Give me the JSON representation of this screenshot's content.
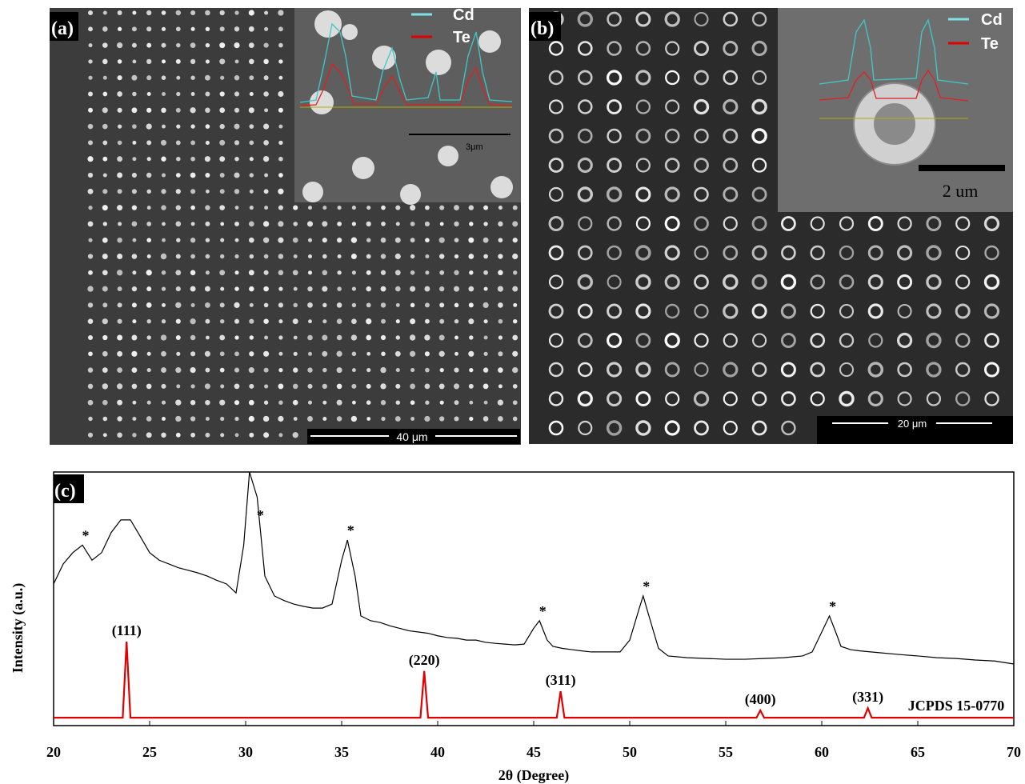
{
  "panels": [
    {
      "label": "(a)",
      "inset_legend": [
        "Cd",
        "Te"
      ],
      "inset_scale": "3μm",
      "scale_bar": "40 μm"
    },
    {
      "label": "(b)",
      "inset_legend": [
        "Cd",
        "Te"
      ],
      "inset_scale": "2 um",
      "scale_bar": "20 μm"
    }
  ],
  "chart_data": {
    "type": "line",
    "label": "(c)",
    "xlabel": "2θ (Degree)",
    "ylabel": "Intensity (a.u.)",
    "xlim": [
      20,
      70
    ],
    "xticks": [
      20,
      25,
      30,
      35,
      40,
      45,
      50,
      55,
      60,
      65,
      70
    ],
    "ylim": [
      0,
      100
    ],
    "series": [
      {
        "color": "#000000",
        "x": [
          20,
          20.5,
          21,
          21.5,
          22,
          22.5,
          23,
          23.5,
          24,
          24.5,
          25,
          25.5,
          26,
          26.5,
          27,
          27.5,
          28,
          28.5,
          29,
          29.5,
          29.9,
          30.2,
          30.6,
          31,
          31.5,
          32,
          32.5,
          33,
          33.5,
          34,
          34.5,
          35,
          35.3,
          35.7,
          36,
          36.5,
          37,
          37.5,
          38,
          38.5,
          39,
          39.5,
          40,
          40.5,
          41,
          41.5,
          42,
          42.5,
          43,
          43.5,
          44,
          44.5,
          45,
          45.3,
          45.7,
          46,
          46.5,
          47,
          47.5,
          48,
          48.5,
          49,
          49.5,
          50,
          50.5,
          50.7,
          51,
          51.5,
          52,
          53,
          54,
          55,
          56,
          57,
          58,
          59,
          59.5,
          60,
          60.4,
          60.8,
          61,
          61.5,
          62,
          63,
          64,
          65,
          66,
          67,
          68,
          69,
          70
        ],
        "values": [
          55.6,
          63.5,
          68,
          71,
          65,
          68,
          76,
          81,
          81,
          74.6,
          68,
          65,
          63.5,
          62,
          61,
          60,
          58.7,
          57,
          55.6,
          52,
          71,
          100,
          90,
          58.7,
          50.8,
          49,
          47.6,
          46.7,
          46,
          46,
          47.6,
          65,
          73,
          58.7,
          42.9,
          41,
          40.3,
          39,
          38,
          37,
          36.5,
          36,
          35,
          34.3,
          34,
          33.3,
          33.3,
          32.4,
          32,
          31.7,
          31.4,
          31.7,
          38,
          41,
          33.3,
          30.8,
          30,
          29.5,
          29,
          28.6,
          28.6,
          28.6,
          28.6,
          33.3,
          46,
          50.8,
          42.9,
          30,
          27,
          26.3,
          26,
          25.7,
          25.7,
          26,
          26.3,
          27,
          28.6,
          36.5,
          42.9,
          35,
          30.8,
          29.5,
          29,
          28.3,
          27.6,
          27,
          26.3,
          26,
          25.4,
          25,
          23.8
        ]
      },
      {
        "name": "JCPDS 15-0770",
        "color": "#e00000",
        "x": [
          20,
          23.6,
          23.8,
          24,
          39.1,
          39.3,
          39.5,
          46.2,
          46.4,
          46.6,
          56.6,
          56.8,
          57,
          62.2,
          62.4,
          62.6,
          70
        ],
        "values": [
          2.5,
          2.5,
          32.7,
          2.5,
          2.5,
          21,
          2.5,
          2.5,
          13,
          2.5,
          2.5,
          5.4,
          2.5,
          2.5,
          6.3,
          2.5,
          2.5
        ]
      }
    ],
    "peak_labels": [
      {
        "text": "(111)",
        "x": 23.8
      },
      {
        "text": "(220)",
        "x": 39.3
      },
      {
        "text": "(311)",
        "x": 46.4
      },
      {
        "text": "(400)",
        "x": 56.8
      },
      {
        "text": "(331)",
        "x": 62.4
      }
    ],
    "asterisks": [
      {
        "text": "*",
        "x": 21.5
      },
      {
        "text": "*",
        "x": 30.6
      },
      {
        "text": "*",
        "x": 35.3
      },
      {
        "text": "*",
        "x": 45.3
      },
      {
        "text": "*",
        "x": 50.7
      },
      {
        "text": "*",
        "x": 60.4
      }
    ]
  }
}
